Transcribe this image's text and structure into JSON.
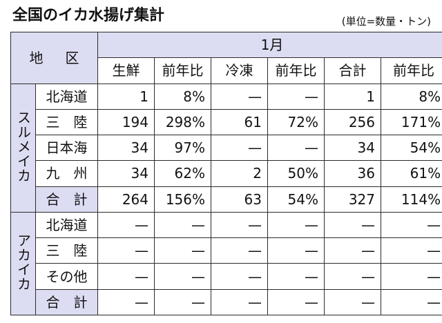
{
  "title": "全国のイカ水揚げ集計",
  "unit_note": "(単位=数量・トン)",
  "header": {
    "region_label": [
      "地",
      "区"
    ],
    "month": "1月",
    "columns": [
      "生鮮",
      "前年比",
      "冷凍",
      "前年比",
      "合計",
      "前年比"
    ]
  },
  "groups": [
    {
      "name": "スルメイカ",
      "rows": [
        {
          "region": "北海道",
          "cells": [
            "1",
            "8%",
            "—",
            "—",
            "1",
            "8%"
          ]
        },
        {
          "region": "三　陸",
          "cells": [
            "194",
            "298%",
            "61",
            "72%",
            "256",
            "171%"
          ]
        },
        {
          "region": "日本海",
          "cells": [
            "34",
            "97%",
            "—",
            "—",
            "34",
            "54%"
          ]
        },
        {
          "region": "九　州",
          "cells": [
            "34",
            "62%",
            "2",
            "50%",
            "36",
            "61%"
          ]
        },
        {
          "region": "合　計",
          "cells": [
            "264",
            "156%",
            "63",
            "54%",
            "327",
            "114%"
          ],
          "total": true
        }
      ]
    },
    {
      "name": "アカイカ",
      "rows": [
        {
          "region": "北海道",
          "cells": [
            "—",
            "—",
            "—",
            "—",
            "—",
            "—"
          ]
        },
        {
          "region": "三　陸",
          "cells": [
            "—",
            "—",
            "—",
            "—",
            "—",
            "—"
          ]
        },
        {
          "region": "その他",
          "cells": [
            "—",
            "—",
            "—",
            "—",
            "—",
            "—"
          ]
        },
        {
          "region": "合　計",
          "cells": [
            "—",
            "—",
            "—",
            "—",
            "—",
            "—"
          ],
          "total": true
        }
      ]
    }
  ]
}
